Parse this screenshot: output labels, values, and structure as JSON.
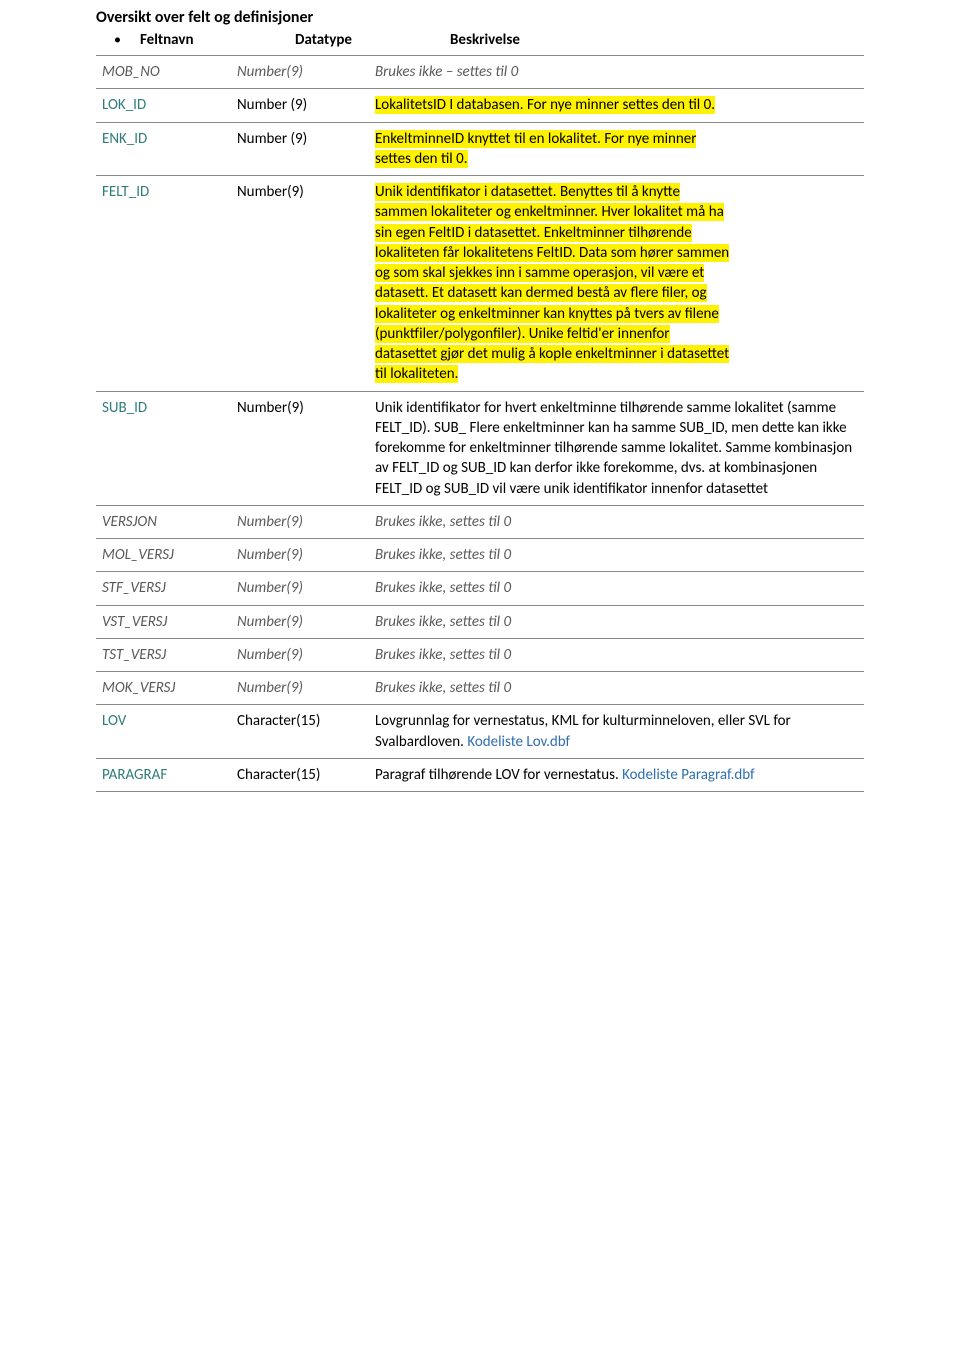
{
  "doc": {
    "title": "Oversikt over felt og definisjoner",
    "headers": {
      "field": "Feltnavn",
      "datatype": "Datatype",
      "desc": "Beskrivelse"
    },
    "colors": {
      "highlight_bg": "#fff200",
      "italic_text": "#595959",
      "teal_text": "#2f7d7a",
      "link_text": "#2f6fb0",
      "border": "#8a8a8a",
      "body_text": "#000000",
      "background": "#ffffff"
    },
    "font": {
      "family": "Calibri",
      "size_pt": 11,
      "title_size_pt": 12,
      "title_weight": "bold"
    }
  },
  "rows": [
    {
      "field": "MOB_NO",
      "field_style": "italic",
      "datatype": "Number(9)",
      "datatype_style": "italic",
      "desc": [
        {
          "text": "Brukes ikke – settes til 0",
          "style": "italic"
        }
      ]
    },
    {
      "field": "LOK_ID",
      "field_style": "teal",
      "datatype": "Number (9)",
      "desc": [
        {
          "text": "LokalitetsID I databasen. For nye minner settes den til 0.",
          "style": "hl"
        }
      ]
    },
    {
      "field": "ENK_ID",
      "field_style": "teal",
      "datatype": "Number (9)",
      "desc": [
        {
          "text": "EnkeltminneID knyttet til en lokalitet. For nye minner",
          "style": "hl"
        },
        {
          "text": "settes den til 0.",
          "style": "hl"
        }
      ]
    },
    {
      "field": "FELT_ID",
      "field_style": "teal",
      "datatype": "Number(9)",
      "desc": [
        {
          "text": "Unik identifikator i datasettet. Benyttes til å knytte",
          "style": "hl"
        },
        {
          "text": "sammen lokaliteter og enkeltminner. Hver lokalitet må ha",
          "style": "hl"
        },
        {
          "text": "sin egen FeltID i datasettet. Enkeltminner tilhørende",
          "style": "hl"
        },
        {
          "text": "lokaliteten får lokalitetens FeltID. Data som hører sammen",
          "style": "hl"
        },
        {
          "text": "og som skal sjekkes inn i samme operasjon, vil være et",
          "style": "hl"
        },
        {
          "text": "datasett. Et datasett kan dermed bestå av flere filer, og",
          "style": "hl"
        },
        {
          "text": "lokaliteter og enkeltminner kan knyttes på tvers av filene",
          "style": "hl"
        },
        {
          "text": "(punktfiler/polygonfiler). Unike feltid'er innenfor",
          "style": "hl"
        },
        {
          "text": "datasettet gjør det mulig å kople enkeltminner i datasettet",
          "style": "hl"
        },
        {
          "text": "til lokaliteten.",
          "style": "hl"
        }
      ]
    },
    {
      "field": "SUB_ID",
      "field_style": "teal",
      "datatype": "Number(9)",
      "desc": [
        {
          "text": "Unik identifikator for hvert enkeltminne tilhørende samme lokalitet (samme FELT_ID). SUB_ Flere enkeltminner kan ha samme SUB_ID, men dette kan ikke forekomme for enkeltminner tilhørende samme lokalitet. Samme kombinasjon av FELT_ID og SUB_ID kan derfor ikke forekomme, dvs. at kombinasjonen FELT_ID og SUB_ID vil være unik identifikator innenfor datasettet"
        }
      ]
    },
    {
      "field": "VERSJON",
      "field_style": "italic",
      "datatype": "Number(9)",
      "datatype_style": "italic",
      "desc": [
        {
          "text": "Brukes ikke, settes til 0",
          "style": "italic"
        }
      ]
    },
    {
      "field": "MOL_VERSJ",
      "field_style": "italic",
      "datatype": "Number(9)",
      "datatype_style": "italic",
      "desc": [
        {
          "text": "Brukes ikke, settes til 0",
          "style": "italic"
        }
      ]
    },
    {
      "field": "STF_VERSJ",
      "field_style": "italic",
      "datatype": "Number(9)",
      "datatype_style": "italic",
      "desc": [
        {
          "text": "Brukes ikke, settes til 0",
          "style": "italic"
        }
      ]
    },
    {
      "field": "VST_VERSJ",
      "field_style": "italic",
      "datatype": "Number(9)",
      "datatype_style": "italic",
      "desc": [
        {
          "text": "Brukes ikke, settes til 0",
          "style": "italic"
        }
      ]
    },
    {
      "field": "TST_VERSJ",
      "field_style": "italic",
      "datatype": "Number(9)",
      "datatype_style": "italic",
      "desc": [
        {
          "text": "Brukes ikke, settes til 0",
          "style": "italic"
        }
      ]
    },
    {
      "field": "MOK_VERSJ",
      "field_style": "italic",
      "datatype": "Number(9)",
      "datatype_style": "italic",
      "desc": [
        {
          "text": "Brukes ikke, settes til 0",
          "style": "italic"
        }
      ]
    },
    {
      "field": "LOV",
      "field_style": "teal",
      "datatype": "Character(15)",
      "desc": [
        {
          "text": "Lovgrunnlag for vernestatus, KML for kulturminneloven, eller SVL for Svalbardloven. "
        },
        {
          "text": "Kodeliste Lov.dbf",
          "style": "link"
        }
      ]
    },
    {
      "field": "PARAGRAF",
      "field_style": "teal",
      "datatype": "Character(15)",
      "desc": [
        {
          "text": "Paragraf tilhørende LOV for vernestatus. "
        },
        {
          "text": "Kodeliste Paragraf.dbf",
          "style": "link"
        }
      ]
    }
  ]
}
